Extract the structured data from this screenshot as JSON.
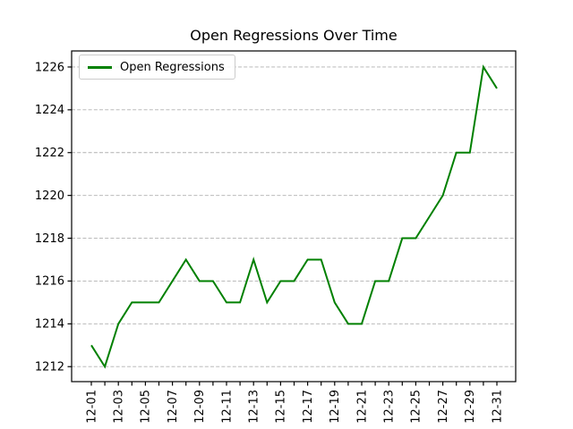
{
  "chart_data": {
    "type": "line",
    "title": "Open Regressions Over Time",
    "legend": {
      "label": "Open Regressions",
      "position": "upper left"
    },
    "categories": [
      "12-01",
      "12-02",
      "12-03",
      "12-04",
      "12-05",
      "12-06",
      "12-07",
      "12-08",
      "12-09",
      "12-10",
      "12-11",
      "12-12",
      "12-13",
      "12-14",
      "12-15",
      "12-16",
      "12-17",
      "12-18",
      "12-19",
      "12-20",
      "12-21",
      "12-22",
      "12-23",
      "12-24",
      "12-25",
      "12-26",
      "12-27",
      "12-28",
      "12-29",
      "12-30",
      "12-31"
    ],
    "series": [
      {
        "name": "Open Regressions",
        "color": "#008000",
        "values": [
          1213,
          1212,
          1214,
          1215,
          1215,
          1215,
          1216,
          1217,
          1216,
          1216,
          1215,
          1215,
          1217,
          1215,
          1216,
          1216,
          1217,
          1217,
          1215,
          1214,
          1214,
          1216,
          1216,
          1218,
          1218,
          1219,
          1220,
          1222,
          1222,
          1226,
          1225
        ]
      }
    ],
    "x_tick_labels": [
      "12-01",
      "12-03",
      "12-05",
      "12-07",
      "12-09",
      "12-11",
      "12-13",
      "12-15",
      "12-17",
      "12-19",
      "12-21",
      "12-23",
      "12-25",
      "12-27",
      "12-29",
      "12-31"
    ],
    "y_ticks": [
      1212,
      1214,
      1216,
      1218,
      1220,
      1222,
      1224,
      1226
    ],
    "ylim": [
      1211.3,
      1226.75
    ],
    "grid": "horizontal-dashed",
    "grid_color": "#b0b0b0",
    "axis_color": "#000000",
    "background": "#ffffff"
  }
}
